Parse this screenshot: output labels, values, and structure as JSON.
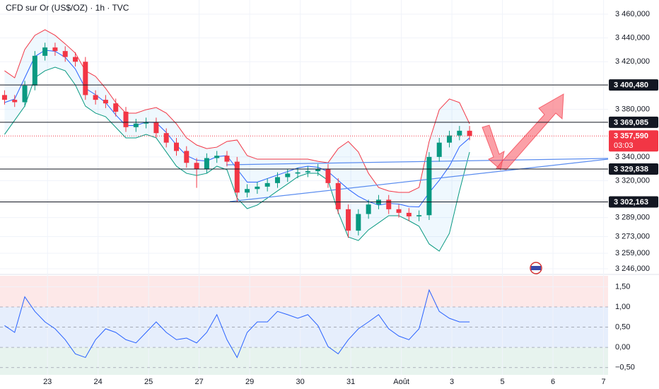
{
  "chart_data": [
    {
      "type": "candlestick",
      "title": "CFD sur Or (US$/OZ) · 1h · TVC",
      "up_color": "#089981",
      "down_color": "#f23645",
      "x": [
        -0.85,
        -0.65,
        -0.45,
        -0.25,
        -0.05,
        0.15,
        0.35,
        0.55,
        0.75,
        0.95,
        1.15,
        1.35,
        1.55,
        1.75,
        1.95,
        2.15,
        2.35,
        2.55,
        2.75,
        2.95,
        3.15,
        3.35,
        3.55,
        3.75,
        3.95,
        4.15,
        4.35,
        4.55,
        4.75,
        4.95,
        5.15,
        5.35,
        5.55,
        5.75,
        5.95,
        6.15,
        6.35,
        6.55,
        6.75,
        6.95,
        7.15,
        7.35,
        7.55,
        7.75,
        7.95,
        8.15,
        8.35
      ],
      "open": [
        3392,
        3388,
        3386,
        3400,
        3425,
        3432,
        3429,
        3424,
        3420,
        3392,
        3388,
        3385,
        3378,
        3365,
        3368,
        3369,
        3360,
        3352,
        3345,
        3335,
        3330,
        3339,
        3341,
        3336,
        3310,
        3313,
        3315,
        3318,
        3323,
        3326,
        3327,
        3328,
        3330,
        3318,
        3296,
        3278,
        3292,
        3300,
        3304,
        3296,
        3293,
        3290,
        3291,
        3340,
        3352,
        3358,
        3362
      ],
      "high": [
        3396,
        3392,
        3404,
        3429,
        3436,
        3436,
        3433,
        3428,
        3424,
        3396,
        3392,
        3389,
        3382,
        3372,
        3373,
        3373,
        3364,
        3356,
        3349,
        3339,
        3343,
        3345,
        3345,
        3340,
        3317,
        3319,
        3322,
        3327,
        3330,
        3331,
        3332,
        3334,
        3334,
        3322,
        3300,
        3296,
        3304,
        3308,
        3308,
        3300,
        3297,
        3295,
        3344,
        3356,
        3362,
        3366,
        3366
      ],
      "low": [
        3384,
        3382,
        3382,
        3396,
        3421,
        3425,
        3420,
        3416,
        3388,
        3384,
        3381,
        3374,
        3361,
        3361,
        3364,
        3356,
        3348,
        3341,
        3331,
        3314,
        3326,
        3335,
        3332,
        3302,
        3306,
        3309,
        3311,
        3314,
        3319,
        3322,
        3323,
        3324,
        3314,
        3292,
        3272,
        3274,
        3288,
        3296,
        3292,
        3289,
        3286,
        3286,
        3287,
        3336,
        3348,
        3354,
        3354
      ],
      "close": [
        3388,
        3386,
        3400,
        3425,
        3432,
        3429,
        3424,
        3420,
        3392,
        3388,
        3385,
        3378,
        3365,
        3368,
        3369,
        3360,
        3352,
        3345,
        3335,
        3330,
        3339,
        3341,
        3336,
        3310,
        3313,
        3315,
        3318,
        3323,
        3326,
        3327,
        3328,
        3330,
        3318,
        3296,
        3278,
        3292,
        3300,
        3304,
        3296,
        3293,
        3290,
        3291,
        3340,
        3352,
        3358,
        3362,
        3357.6
      ],
      "bands": {
        "upper": {
          "color": "#f23645",
          "values": [
            3412.4,
            3406.5,
            3430.3,
            3442.2,
            3446.9,
            3442.2,
            3435.0,
            3427.3,
            3412.4,
            3407.7,
            3397.6,
            3385.7,
            3376.8,
            3376.8,
            3379.7,
            3381.5,
            3376.8,
            3367.8,
            3356.0,
            3350.0,
            3347.0,
            3348.2,
            3353.0,
            3354.2,
            3341.1,
            3338.1,
            3338.1,
            3338.1,
            3338.1,
            3338.1,
            3338.1,
            3336.3,
            3335.1,
            3347.0,
            3353.0,
            3344.1,
            3326.2,
            3314.3,
            3311.4,
            3310.2,
            3310.2,
            3314.3,
            3353.0,
            3379.7,
            3388.7,
            3385.7,
            3367.8
          ]
        },
        "middle": {
          "color": "#2962ff",
          "values": [
            3385.7,
            3388.7,
            3406.5,
            3424.4,
            3429.7,
            3428.8,
            3423.7,
            3413.9,
            3397.6,
            3392.3,
            3385.7,
            3375.3,
            3366.4,
            3366.4,
            3369.3,
            3368.8,
            3360.5,
            3350.0,
            3341.1,
            3337.2,
            3336.6,
            3340.2,
            3341.1,
            3329.8,
            3318.8,
            3318.8,
            3321.8,
            3324.8,
            3327.7,
            3330.7,
            3332.2,
            3331.3,
            3327.7,
            3320.3,
            3312.9,
            3306.9,
            3302.5,
            3299.5,
            3301.0,
            3300.4,
            3298.3,
            3298.0,
            3309.9,
            3320.3,
            3332.2,
            3348.6,
            3356.0
          ]
        },
        "lower": {
          "color": "#089981",
          "values": [
            3358.9,
            3370.8,
            3382.7,
            3406.5,
            3412.4,
            3415.4,
            3412.4,
            3400.5,
            3382.7,
            3376.8,
            3373.8,
            3364.9,
            3356.0,
            3356.0,
            3358.9,
            3356.0,
            3344.1,
            3332.2,
            3326.2,
            3324.4,
            3326.2,
            3332.2,
            3329.2,
            3305.4,
            3296.5,
            3299.5,
            3305.4,
            3311.4,
            3317.3,
            3323.3,
            3326.2,
            3326.2,
            3320.3,
            3293.5,
            3272.7,
            3269.7,
            3278.7,
            3284.6,
            3290.6,
            3290.6,
            3286.4,
            3281.7,
            3266.8,
            3260.8,
            3275.7,
            3311.4,
            3344.1
          ]
        }
      },
      "xlim": [
        -0.94,
        11.09
      ],
      "xticks": [
        {
          "value": 0,
          "label": "23"
        },
        {
          "value": 1,
          "label": "24"
        },
        {
          "value": 2,
          "label": "25"
        },
        {
          "value": 3,
          "label": "27"
        },
        {
          "value": 4,
          "label": "29"
        },
        {
          "value": 5,
          "label": "30"
        },
        {
          "value": 6,
          "label": "31"
        },
        {
          "value": 7,
          "label": "Août"
        },
        {
          "value": 8,
          "label": "3"
        },
        {
          "value": 9,
          "label": "5"
        },
        {
          "value": 10,
          "label": "6"
        },
        {
          "value": 11,
          "label": "7"
        }
      ],
      "ylim": [
        3243.0,
        3471.9
      ],
      "yticks": [
        {
          "value": 3460,
          "label": "3 460,000"
        },
        {
          "value": 3440,
          "label": "3 440,000"
        },
        {
          "value": 3420,
          "label": "3 420,000"
        },
        {
          "value": 3380,
          "label": "3 380,000"
        },
        {
          "value": 3340,
          "label": "3 340,000"
        },
        {
          "value": 3320,
          "label": "3 320,000"
        },
        {
          "value": 3289,
          "label": "3 289,000"
        },
        {
          "value": 3273,
          "label": "3 273,000"
        },
        {
          "value": 3259,
          "label": "3 259,000"
        },
        {
          "value": 3246,
          "label": "3 246,000"
        }
      ],
      "grid": true,
      "levels": [
        {
          "value": 3400.48,
          "label": "3 400,480"
        },
        {
          "value": 3369.085,
          "label": "3 369,085"
        },
        {
          "value": 3329.838,
          "label": "3 329,838"
        },
        {
          "value": 3302.163,
          "label": "3 302,163"
        }
      ],
      "last_price": {
        "value": 3357.59,
        "label": "3 357,590",
        "countdown": "03:03",
        "color": "#f23645"
      }
    },
    {
      "type": "line",
      "color": "#2962ff",
      "values": [
        0.54,
        0.37,
        1.25,
        0.89,
        0.63,
        0.46,
        0.19,
        -0.16,
        -0.25,
        0.19,
        0.46,
        0.37,
        0.19,
        0.11,
        0.37,
        0.63,
        0.37,
        0.19,
        0.23,
        0.11,
        0.37,
        0.81,
        0.19,
        -0.25,
        0.37,
        0.63,
        0.63,
        0.89,
        0.81,
        0.72,
        0.81,
        0.54,
        0.02,
        -0.16,
        0.19,
        0.46,
        0.63,
        0.81,
        0.46,
        0.28,
        0.19,
        0.46,
        1.42,
        0.89,
        0.72,
        0.63,
        0.63
      ],
      "ylim": [
        -0.68,
        1.77
      ],
      "yticks": [
        {
          "value": 1.5,
          "label": "1,50"
        },
        {
          "value": 1,
          "label": "1,00"
        },
        {
          "value": 0.5,
          "label": "0,50"
        },
        {
          "value": 0,
          "label": "0,00"
        },
        {
          "value": -0.5,
          "label": "−0,50"
        }
      ]
    }
  ]
}
